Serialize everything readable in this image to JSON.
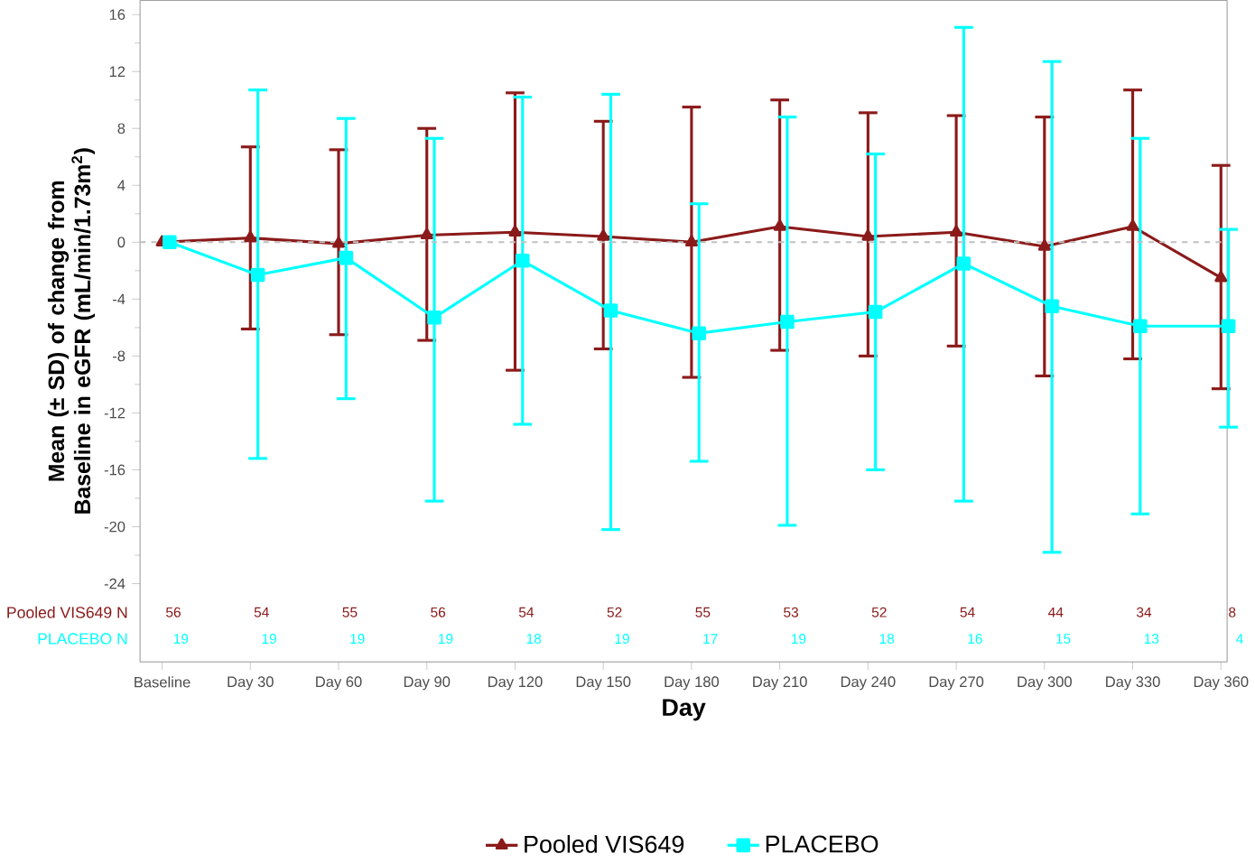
{
  "chart_data": {
    "type": "line",
    "xlabel": "Day",
    "ylabel": "Mean (± SD) of change from Baseline in eGFR (mL/min/1.73m$^{2}$)",
    "categories": [
      "Baseline",
      "Day 30",
      "Day 60",
      "Day 90",
      "Day 120",
      "Day 150",
      "Day 180",
      "Day 210",
      "Day 240",
      "Day 270",
      "Day 300",
      "Day 330",
      "Day 360"
    ],
    "series": [
      {
        "name": "Pooled VIS649",
        "color": "#8b1a1a",
        "marker": "triangle",
        "values": [
          0,
          0.3,
          -0.1,
          0.5,
          0.7,
          0.4,
          0.0,
          1.1,
          0.4,
          0.7,
          -0.3,
          1.1,
          -2.5
        ],
        "errors": [
          null,
          [
            -6.1,
            6.7
          ],
          [
            -6.5,
            6.5
          ],
          [
            -6.9,
            8.0
          ],
          [
            -9.0,
            10.5
          ],
          [
            -7.5,
            8.5
          ],
          [
            -9.5,
            9.5
          ],
          [
            -7.6,
            10.0
          ],
          [
            -8.0,
            9.1
          ],
          [
            -7.3,
            8.9
          ],
          [
            -9.4,
            8.8
          ],
          [
            -8.2,
            10.7
          ],
          [
            -10.3,
            5.4
          ]
        ]
      },
      {
        "name": "PLACEBO",
        "color": "#00ffff",
        "marker": "square",
        "values": [
          0,
          -2.3,
          -1.1,
          -5.3,
          -1.3,
          -4.8,
          -6.4,
          -5.6,
          -4.9,
          -1.5,
          -4.5,
          -5.9,
          -5.9
        ],
        "errors": [
          null,
          [
            -15.2,
            10.7
          ],
          [
            -11.0,
            8.7
          ],
          [
            -18.2,
            7.3
          ],
          [
            -12.8,
            10.2
          ],
          [
            -20.2,
            10.4
          ],
          [
            -15.4,
            2.7
          ],
          [
            -19.9,
            8.8
          ],
          [
            -16.0,
            6.2
          ],
          [
            -18.2,
            15.1
          ],
          [
            -21.8,
            12.7
          ],
          [
            -19.1,
            7.3
          ],
          [
            -13.0,
            0.9
          ]
        ]
      }
    ],
    "annotations": [
      "Pooled VIS649 N",
      "56",
      "54",
      "55",
      "56",
      "54",
      "52",
      "55",
      "53",
      "52",
      "54",
      "44",
      "34",
      "8",
      "PLACEBO N",
      "19",
      "19",
      "19",
      "19",
      "18",
      "19",
      "17",
      "19",
      "18",
      "16",
      "15",
      "13",
      "4"
    ],
    "ylim": [
      -29.5,
      17
    ],
    "yticks": [
      -24,
      -20,
      -16,
      -12,
      -8,
      -4,
      0,
      4,
      8,
      12,
      16
    ],
    "ref_lines": [
      {
        "axis": "y",
        "value": 0,
        "color": "#c0c0c0",
        "line_style": "dashed"
      }
    ],
    "legend": "bottom",
    "line_style": "solid"
  }
}
